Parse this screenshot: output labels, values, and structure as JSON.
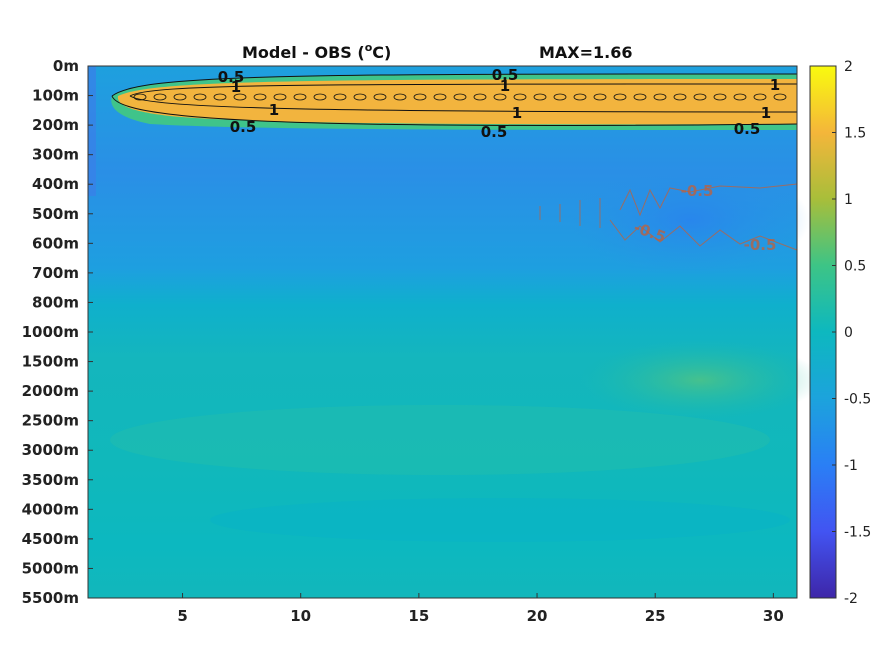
{
  "chart_data": {
    "type": "heatmap",
    "title": "Model - OBS (",
    "title_unit_sup": "o",
    "title_unit": "C)",
    "max_label": "MAX=1.66",
    "x_ticks": [
      5,
      10,
      15,
      20,
      25,
      30
    ],
    "x_range": [
      1,
      31
    ],
    "y_labels": [
      "0m",
      "100m",
      "200m",
      "300m",
      "400m",
      "500m",
      "600m",
      "700m",
      "800m",
      "1000m",
      "1500m",
      "2000m",
      "2500m",
      "3000m",
      "3500m",
      "4000m",
      "4500m",
      "5000m",
      "5500m"
    ],
    "colorbar": {
      "range": [
        -2,
        2
      ],
      "ticks": [
        "2",
        "1.5",
        "1",
        "0.5",
        "0",
        "-0.5",
        "-1",
        "-1.5",
        "-2"
      ]
    },
    "contours": [
      {
        "level": "0.5",
        "labels": [
          "0.5",
          "0.5",
          "0.5",
          "0.5",
          "0.5"
        ]
      },
      {
        "level": "1",
        "labels": [
          "1",
          "1",
          "1",
          "1",
          "1",
          "1"
        ]
      },
      {
        "level": "-0.5",
        "labels": [
          "-0.5",
          "-0.5",
          "-0.5"
        ]
      }
    ],
    "grid": false,
    "colormap": "parula"
  }
}
